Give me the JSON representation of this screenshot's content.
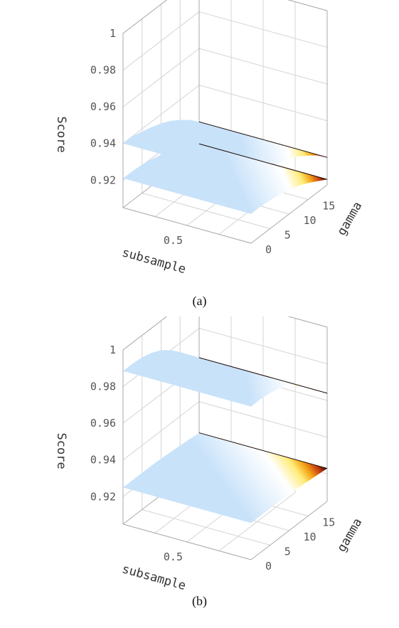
{
  "chart_data": [
    {
      "type": "surface",
      "caption": "(a)",
      "zlabel": "Score",
      "xlabel": "subsample",
      "ylabel": "gamma",
      "z_ticks": [
        "1",
        "0.98",
        "0.96",
        "0.94",
        "0.92"
      ],
      "x_ticks": [
        "0.5"
      ],
      "y_ticks": [
        "0",
        "5",
        "10",
        "15"
      ],
      "zlim": [
        0.905,
        1.0
      ],
      "xlim": [
        0,
        1
      ],
      "ylim": [
        0,
        20
      ],
      "grid": true,
      "colormap": [
        "#c8e2fa",
        "#ffffff",
        "#ffec7a",
        "#f4a416",
        "#c43c12",
        "#2a0800"
      ],
      "series": [
        {
          "z_at_gamma": [
            0.94,
            0.94,
            0.9385,
            0.937,
            0.935,
            0.9325,
            0.929,
            0.925,
            0.92
          ]
        },
        {
          "z_at_gamma": [
            0.921,
            0.921,
            0.9205,
            0.9195,
            0.918,
            0.9165,
            0.914,
            0.911,
            0.908
          ]
        }
      ]
    },
    {
      "type": "surface",
      "caption": "(b)",
      "zlabel": "Score",
      "xlabel": "subsample",
      "ylabel": "gamma",
      "z_ticks": [
        "1",
        "0.98",
        "0.96",
        "0.94",
        "0.92"
      ],
      "x_ticks": [
        "0.5"
      ],
      "y_ticks": [
        "0",
        "5",
        "10",
        "15"
      ],
      "zlim": [
        0.905,
        1.0
      ],
      "xlim": [
        0,
        1
      ],
      "ylim": [
        0,
        20
      ],
      "grid": true,
      "colormap": [
        "#c8e2fa",
        "#ffffff",
        "#ffec7a",
        "#f4a416",
        "#c43c12",
        "#2a0800"
      ],
      "series": [
        {
          "z_at_gamma": [
            0.9885,
            0.9885,
            0.988,
            0.9865,
            0.984,
            0.98,
            0.975,
            0.9695,
            0.964
          ]
        },
        {
          "z_at_gamma": [
            0.925,
            0.925,
            0.925,
            0.925,
            0.9248,
            0.9245,
            0.924,
            0.9235,
            0.923
          ]
        }
      ]
    }
  ]
}
